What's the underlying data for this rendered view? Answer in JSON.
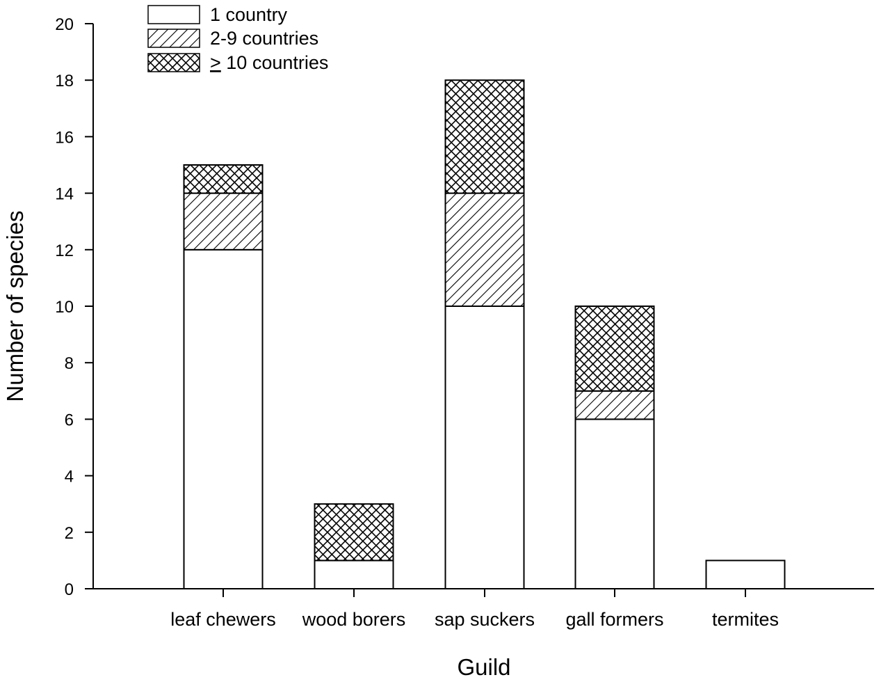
{
  "chart_data": {
    "type": "bar",
    "stacked": true,
    "title": "",
    "xlabel": "Guild",
    "ylabel": "Number of species",
    "ylim": [
      0,
      20
    ],
    "yticks": [
      0,
      2,
      4,
      6,
      8,
      10,
      12,
      14,
      16,
      18,
      20
    ],
    "grid": false,
    "legend_position": "top-left",
    "categories": [
      "leaf chewers",
      "wood borers",
      "sap suckers",
      "gall formers",
      "termites"
    ],
    "series": [
      {
        "name": "1 country",
        "pattern": "solid-white",
        "values": [
          12,
          1,
          10,
          6,
          1
        ]
      },
      {
        "name": "2-9 countries",
        "pattern": "diagonal-hatch",
        "values": [
          2,
          0,
          4,
          1,
          0
        ]
      },
      {
        "name": "≥ 10 countries",
        "legend_prefix": ">",
        "legend_suffix": " 10 countries",
        "pattern": "crosshatch",
        "values": [
          1,
          2,
          4,
          3,
          0
        ]
      }
    ]
  }
}
